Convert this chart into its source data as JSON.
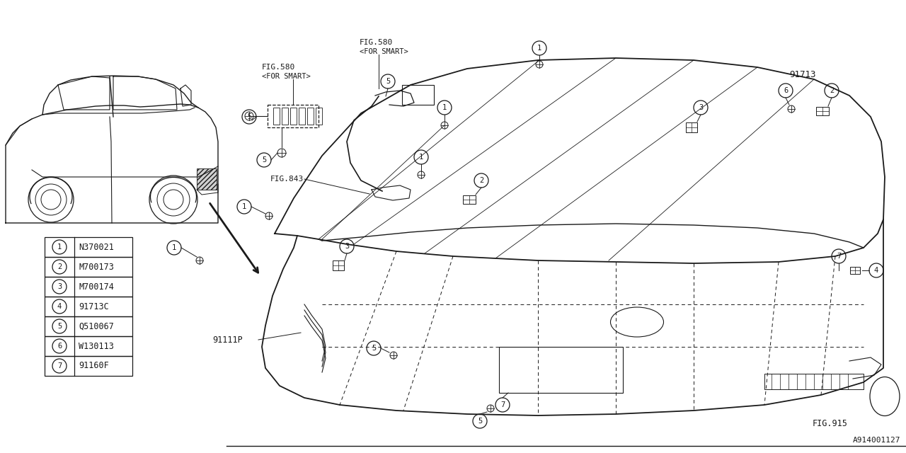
{
  "bg_color": "#ffffff",
  "line_color": "#1a1a1a",
  "fig_number": "A914001127",
  "parts": [
    {
      "num": "1",
      "code": "N370021"
    },
    {
      "num": "2",
      "code": "M700173"
    },
    {
      "num": "3",
      "code": "M700174"
    },
    {
      "num": "4",
      "code": "91713C"
    },
    {
      "num": "5",
      "code": "Q510067"
    },
    {
      "num": "6",
      "code": "W130113"
    },
    {
      "num": "7",
      "code": "91160F"
    }
  ],
  "fig580_left": "FIG.580\n<FOR SMART>",
  "fig580_right": "FIG.580\n<FOR SMART>",
  "fig843": "FIG.843",
  "fig915": "FIG.915",
  "label_91713": "91713",
  "label_91111p": "91111P"
}
